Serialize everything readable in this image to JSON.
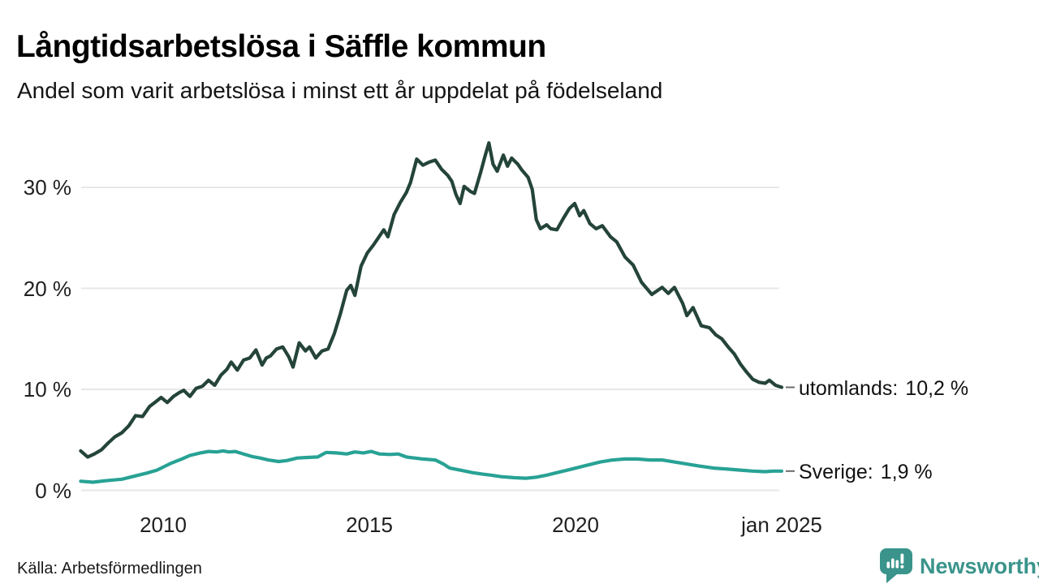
{
  "header": {
    "title": "Långtidsarbetslösa i Säffle kommun",
    "subtitle": "Andel som varit arbetslösa i minst ett år uppdelat på födelseland"
  },
  "footer": {
    "source": "Källa: Arbetsförmedlingen"
  },
  "logo": {
    "text": "Newsworthy",
    "color": "#3a948b"
  },
  "colors": {
    "series_utomlands": "#24443a",
    "series_sverige": "#28a295",
    "gridline": "#e7e7e7",
    "label_connector": "#6b6b6b",
    "text": "#1f1f1f"
  },
  "chart_data": {
    "type": "line",
    "title": "Långtidsarbetslösa i Säffle kommun",
    "subtitle": "Andel som varit arbetslösa i minst ett år uppdelat på födelseland",
    "grid": true,
    "legend_position": "end-of-line-labels",
    "x_axis": {
      "range_years": [
        2008.0,
        2025.0
      ],
      "ticks": [
        {
          "label": "2010",
          "year": 2010
        },
        {
          "label": "2015",
          "year": 2015
        },
        {
          "label": "2020",
          "year": 2020
        },
        {
          "label": "jan 2025",
          "year": 2025
        }
      ]
    },
    "y_axis": {
      "unit": "%",
      "range": [
        0,
        35
      ],
      "ticks": [
        {
          "label": "0 %",
          "value": 0
        },
        {
          "label": "10 %",
          "value": 10
        },
        {
          "label": "20 %",
          "value": 20
        },
        {
          "label": "30 %",
          "value": 30
        }
      ]
    },
    "series": [
      {
        "name": "utomlands",
        "color": "#24443a",
        "end_label_prefix": "utomlands:",
        "end_value_label": "10,2 %",
        "end_value": 10.2,
        "points": [
          [
            2008.0,
            3.9
          ],
          [
            2008.17,
            3.3
          ],
          [
            2008.33,
            3.6
          ],
          [
            2008.5,
            4.0
          ],
          [
            2008.67,
            4.7
          ],
          [
            2008.83,
            5.3
          ],
          [
            2009.0,
            5.7
          ],
          [
            2009.17,
            6.4
          ],
          [
            2009.33,
            7.4
          ],
          [
            2009.5,
            7.3
          ],
          [
            2009.67,
            8.3
          ],
          [
            2009.83,
            8.8
          ],
          [
            2009.95,
            9.2
          ],
          [
            2010.1,
            8.7
          ],
          [
            2010.25,
            9.3
          ],
          [
            2010.4,
            9.7
          ],
          [
            2010.5,
            9.9
          ],
          [
            2010.65,
            9.3
          ],
          [
            2010.8,
            10.1
          ],
          [
            2010.95,
            10.3
          ],
          [
            2011.1,
            10.9
          ],
          [
            2011.25,
            10.4
          ],
          [
            2011.4,
            11.4
          ],
          [
            2011.55,
            12.0
          ],
          [
            2011.65,
            12.7
          ],
          [
            2011.8,
            11.9
          ],
          [
            2011.95,
            12.9
          ],
          [
            2012.1,
            13.1
          ],
          [
            2012.25,
            13.9
          ],
          [
            2012.4,
            12.4
          ],
          [
            2012.5,
            13.1
          ],
          [
            2012.6,
            13.3
          ],
          [
            2012.75,
            14.0
          ],
          [
            2012.9,
            14.2
          ],
          [
            2013.05,
            13.2
          ],
          [
            2013.15,
            12.2
          ],
          [
            2013.3,
            14.6
          ],
          [
            2013.45,
            13.8
          ],
          [
            2013.55,
            14.2
          ],
          [
            2013.7,
            13.1
          ],
          [
            2013.85,
            13.8
          ],
          [
            2014.0,
            14.0
          ],
          [
            2014.15,
            15.5
          ],
          [
            2014.3,
            17.5
          ],
          [
            2014.45,
            19.8
          ],
          [
            2014.55,
            20.3
          ],
          [
            2014.65,
            19.3
          ],
          [
            2014.8,
            22.2
          ],
          [
            2014.95,
            23.5
          ],
          [
            2015.1,
            24.3
          ],
          [
            2015.25,
            25.2
          ],
          [
            2015.35,
            25.8
          ],
          [
            2015.45,
            25.1
          ],
          [
            2015.6,
            27.3
          ],
          [
            2015.75,
            28.5
          ],
          [
            2015.9,
            29.5
          ],
          [
            2016.0,
            30.5
          ],
          [
            2016.15,
            32.8
          ],
          [
            2016.3,
            32.2
          ],
          [
            2016.45,
            32.5
          ],
          [
            2016.6,
            32.7
          ],
          [
            2016.75,
            31.8
          ],
          [
            2016.9,
            31.2
          ],
          [
            2017.0,
            30.6
          ],
          [
            2017.1,
            29.3
          ],
          [
            2017.2,
            28.4
          ],
          [
            2017.3,
            30.1
          ],
          [
            2017.45,
            29.6
          ],
          [
            2017.55,
            29.4
          ],
          [
            2017.7,
            31.5
          ],
          [
            2017.8,
            33.0
          ],
          [
            2017.9,
            34.4
          ],
          [
            2018.0,
            32.3
          ],
          [
            2018.1,
            31.6
          ],
          [
            2018.25,
            33.2
          ],
          [
            2018.35,
            32.1
          ],
          [
            2018.45,
            32.9
          ],
          [
            2018.6,
            32.3
          ],
          [
            2018.7,
            31.7
          ],
          [
            2018.85,
            31.0
          ],
          [
            2018.95,
            29.8
          ],
          [
            2019.05,
            26.8
          ],
          [
            2019.15,
            25.9
          ],
          [
            2019.3,
            26.3
          ],
          [
            2019.4,
            25.9
          ],
          [
            2019.55,
            25.8
          ],
          [
            2019.7,
            26.9
          ],
          [
            2019.85,
            27.9
          ],
          [
            2019.98,
            28.4
          ],
          [
            2020.1,
            27.2
          ],
          [
            2020.2,
            27.7
          ],
          [
            2020.35,
            26.4
          ],
          [
            2020.5,
            25.9
          ],
          [
            2020.65,
            26.2
          ],
          [
            2020.85,
            25.1
          ],
          [
            2021.0,
            24.6
          ],
          [
            2021.2,
            23.1
          ],
          [
            2021.4,
            22.3
          ],
          [
            2021.6,
            20.6
          ],
          [
            2021.85,
            19.4
          ],
          [
            2022.1,
            20.1
          ],
          [
            2022.25,
            19.5
          ],
          [
            2022.4,
            20.1
          ],
          [
            2022.6,
            18.5
          ],
          [
            2022.7,
            17.3
          ],
          [
            2022.85,
            18.1
          ],
          [
            2023.05,
            16.3
          ],
          [
            2023.25,
            16.1
          ],
          [
            2023.4,
            15.4
          ],
          [
            2023.55,
            15.0
          ],
          [
            2023.7,
            14.2
          ],
          [
            2023.85,
            13.5
          ],
          [
            2024.0,
            12.5
          ],
          [
            2024.15,
            11.7
          ],
          [
            2024.3,
            11.0
          ],
          [
            2024.45,
            10.7
          ],
          [
            2024.6,
            10.6
          ],
          [
            2024.7,
            10.9
          ],
          [
            2024.85,
            10.4
          ],
          [
            2025.0,
            10.2
          ]
        ]
      },
      {
        "name": "Sverige",
        "color": "#28a295",
        "end_label_prefix": "Sverige:",
        "end_value_label": "1,9 %",
        "end_value": 1.9,
        "points": [
          [
            2008.0,
            0.9
          ],
          [
            2008.3,
            0.8
          ],
          [
            2008.6,
            0.95
          ],
          [
            2009.0,
            1.1
          ],
          [
            2009.3,
            1.4
          ],
          [
            2009.6,
            1.7
          ],
          [
            2009.85,
            2.0
          ],
          [
            2010.0,
            2.3
          ],
          [
            2010.2,
            2.7
          ],
          [
            2010.45,
            3.1
          ],
          [
            2010.65,
            3.45
          ],
          [
            2010.9,
            3.7
          ],
          [
            2011.1,
            3.85
          ],
          [
            2011.3,
            3.8
          ],
          [
            2011.45,
            3.9
          ],
          [
            2011.6,
            3.8
          ],
          [
            2011.75,
            3.85
          ],
          [
            2011.95,
            3.6
          ],
          [
            2012.15,
            3.35
          ],
          [
            2012.35,
            3.2
          ],
          [
            2012.55,
            3.0
          ],
          [
            2012.8,
            2.85
          ],
          [
            2013.0,
            2.95
          ],
          [
            2013.25,
            3.2
          ],
          [
            2013.5,
            3.25
          ],
          [
            2013.75,
            3.3
          ],
          [
            2013.95,
            3.75
          ],
          [
            2014.2,
            3.7
          ],
          [
            2014.45,
            3.6
          ],
          [
            2014.65,
            3.8
          ],
          [
            2014.85,
            3.7
          ],
          [
            2015.05,
            3.85
          ],
          [
            2015.25,
            3.6
          ],
          [
            2015.5,
            3.55
          ],
          [
            2015.7,
            3.6
          ],
          [
            2015.9,
            3.3
          ],
          [
            2016.1,
            3.2
          ],
          [
            2016.3,
            3.1
          ],
          [
            2016.6,
            3.0
          ],
          [
            2016.8,
            2.6
          ],
          [
            2016.95,
            2.2
          ],
          [
            2017.2,
            2.0
          ],
          [
            2017.5,
            1.75
          ],
          [
            2017.75,
            1.6
          ],
          [
            2017.95,
            1.5
          ],
          [
            2018.2,
            1.35
          ],
          [
            2018.5,
            1.25
          ],
          [
            2018.8,
            1.2
          ],
          [
            2019.05,
            1.3
          ],
          [
            2019.3,
            1.5
          ],
          [
            2019.6,
            1.8
          ],
          [
            2019.9,
            2.1
          ],
          [
            2020.2,
            2.4
          ],
          [
            2020.6,
            2.8
          ],
          [
            2020.9,
            3.0
          ],
          [
            2021.2,
            3.1
          ],
          [
            2021.5,
            3.1
          ],
          [
            2021.8,
            3.0
          ],
          [
            2022.1,
            3.0
          ],
          [
            2022.4,
            2.8
          ],
          [
            2022.7,
            2.6
          ],
          [
            2023.0,
            2.4
          ],
          [
            2023.35,
            2.2
          ],
          [
            2023.7,
            2.1
          ],
          [
            2024.0,
            2.0
          ],
          [
            2024.3,
            1.9
          ],
          [
            2024.6,
            1.85
          ],
          [
            2024.8,
            1.9
          ],
          [
            2025.0,
            1.9
          ]
        ]
      }
    ]
  }
}
